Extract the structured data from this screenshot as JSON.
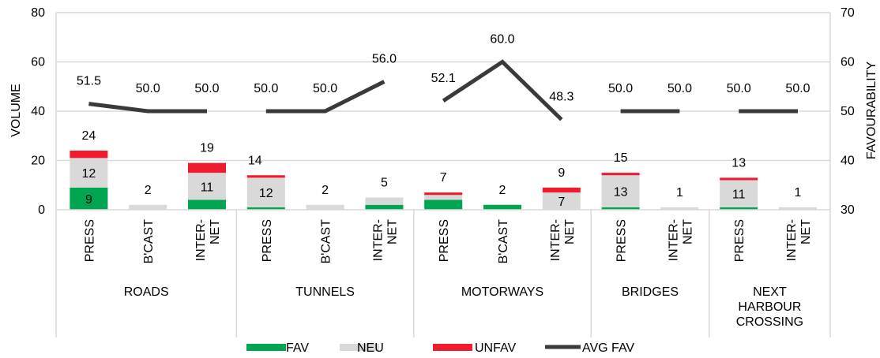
{
  "chart_data": {
    "type": "bar",
    "stacked": true,
    "y_left_label": "VOLUME",
    "y_right_label": "FAVOURABILITY",
    "y_left_ticks": [
      "0",
      "20",
      "40",
      "60",
      "80"
    ],
    "y_right_ticks": [
      "30",
      "40",
      "50",
      "60",
      "70"
    ],
    "ylim_left": [
      0,
      80
    ],
    "ylim_right": [
      30,
      70
    ],
    "groups": [
      {
        "name": "ROADS",
        "lines": [
          "ROADS"
        ]
      },
      {
        "name": "TUNNELS",
        "lines": [
          "TUNNELS"
        ]
      },
      {
        "name": "MOTORWAYS",
        "lines": [
          "MOTORWAYS"
        ]
      },
      {
        "name": "BRIDGES",
        "lines": [
          "BRIDGES"
        ]
      },
      {
        "name": "NEXT HARBOUR CROSSING",
        "lines": [
          "NEXT",
          "HARBOUR",
          "CROSSING"
        ]
      }
    ],
    "categories": [
      {
        "group": 0,
        "lines": [
          "PRESS"
        ],
        "fav": 9,
        "neu": 12,
        "unfav": 3,
        "total": 24,
        "total_label": "24",
        "fav_label": "9",
        "neu_label": "12",
        "avg_fav": 51.5,
        "avg_label": "51.5"
      },
      {
        "group": 0,
        "lines": [
          "B'CAST"
        ],
        "fav": 0,
        "neu": 2,
        "unfav": 0,
        "total": 2,
        "total_label": "2",
        "fav_label": "",
        "neu_label": "",
        "avg_fav": 50.0,
        "avg_label": "50.0"
      },
      {
        "group": 0,
        "lines": [
          "INTER-",
          "NET"
        ],
        "fav": 4,
        "neu": 11,
        "unfav": 4,
        "total": 19,
        "total_label": "19",
        "fav_label": "",
        "neu_label": "11",
        "avg_fav": 50.0,
        "avg_label": "50.0"
      },
      {
        "group": 1,
        "lines": [
          "PRESS"
        ],
        "fav": 1,
        "neu": 12,
        "unfav": 1,
        "total": 14,
        "total_label": "14",
        "fav_label": "",
        "neu_label": "12",
        "avg_fav": 50.0,
        "avg_label": "50.0"
      },
      {
        "group": 1,
        "lines": [
          "B'CAST"
        ],
        "fav": 0,
        "neu": 2,
        "unfav": 0,
        "total": 2,
        "total_label": "2",
        "fav_label": "",
        "neu_label": "",
        "avg_fav": 50.0,
        "avg_label": "50.0"
      },
      {
        "group": 1,
        "lines": [
          "INTER-",
          "NET"
        ],
        "fav": 2,
        "neu": 3,
        "unfav": 0,
        "total": 5,
        "total_label": "5",
        "fav_label": "",
        "neu_label": "",
        "avg_fav": 56.0,
        "avg_label": "56.0"
      },
      {
        "group": 2,
        "lines": [
          "PRESS"
        ],
        "fav": 4,
        "neu": 2,
        "unfav": 1,
        "total": 7,
        "total_label": "7",
        "fav_label": "",
        "neu_label": "",
        "avg_fav": 52.1,
        "avg_label": "52.1"
      },
      {
        "group": 2,
        "lines": [
          "B'CAST"
        ],
        "fav": 2,
        "neu": 0,
        "unfav": 0,
        "total": 2,
        "total_label": "2",
        "fav_label": "",
        "neu_label": "",
        "avg_fav": 60.0,
        "avg_label": "60.0"
      },
      {
        "group": 2,
        "lines": [
          "INTER-",
          "NET"
        ],
        "fav": 0,
        "neu": 7,
        "unfav": 2,
        "total": 9,
        "total_label": "9",
        "fav_label": "",
        "neu_label": "7",
        "avg_fav": 48.3,
        "avg_label": "48.3"
      },
      {
        "group": 3,
        "lines": [
          "PRESS"
        ],
        "fav": 1,
        "neu": 13,
        "unfav": 1,
        "total": 15,
        "total_label": "15",
        "fav_label": "",
        "neu_label": "13",
        "avg_fav": 50.0,
        "avg_label": "50.0"
      },
      {
        "group": 3,
        "lines": [
          "INTER-",
          "NET"
        ],
        "fav": 0,
        "neu": 1,
        "unfav": 0,
        "total": 1,
        "total_label": "1",
        "fav_label": "",
        "neu_label": "",
        "avg_fav": 50.0,
        "avg_label": "50.0"
      },
      {
        "group": 4,
        "lines": [
          "PRESS"
        ],
        "fav": 1,
        "neu": 11,
        "unfav": 1,
        "total": 13,
        "total_label": "13",
        "fav_label": "",
        "neu_label": "11",
        "avg_fav": 50.0,
        "avg_label": "50.0"
      },
      {
        "group": 4,
        "lines": [
          "INTER-",
          "NET"
        ],
        "fav": 0,
        "neu": 1,
        "unfav": 0,
        "total": 1,
        "total_label": "1",
        "fav_label": "",
        "neu_label": "",
        "avg_fav": 50.0,
        "avg_label": "50.0"
      }
    ],
    "legend": [
      {
        "key": "fav",
        "label": "FAV",
        "kind": "rect"
      },
      {
        "key": "neu",
        "label": "NEU",
        "kind": "rect"
      },
      {
        "key": "unfav",
        "label": "UNFAV",
        "kind": "rect"
      },
      {
        "key": "avg",
        "label": "AVG FAV",
        "kind": "line"
      }
    ],
    "colors": {
      "fav": "#00a551",
      "neu": "#d9d9d9",
      "unfav": "#ee1c2e",
      "avg": "#3a3a3a",
      "grid": "#d9d9d9",
      "fav_label_text": "#ffffff"
    },
    "grid": true,
    "legend_position": "bottom"
  }
}
